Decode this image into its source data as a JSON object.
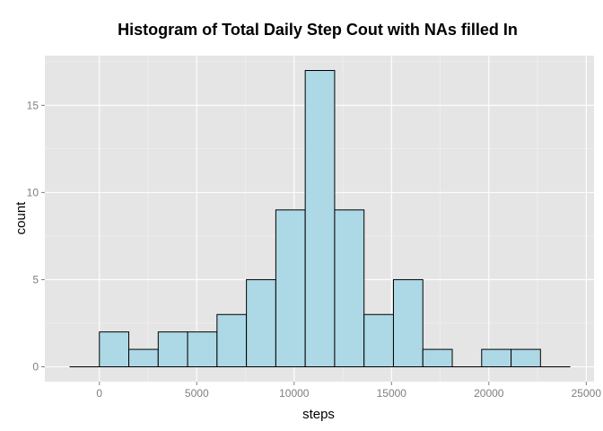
{
  "chart_data": {
    "type": "bar",
    "title": "Histogram of Total Daily Step Cout with NAs filled In",
    "xlabel": "steps",
    "ylabel": "count",
    "x_ticks": [
      0,
      5000,
      10000,
      15000,
      20000,
      25000
    ],
    "y_ticks": [
      0,
      5,
      10,
      15
    ],
    "xlim": [
      -2800,
      25400
    ],
    "ylim": [
      -0.85,
      17.85
    ],
    "bin_width": 1510,
    "bins": [
      {
        "start": -1510,
        "end": 0,
        "count": 0
      },
      {
        "start": 0,
        "end": 1510,
        "count": 2
      },
      {
        "start": 1510,
        "end": 3020,
        "count": 1
      },
      {
        "start": 3020,
        "end": 4530,
        "count": 2
      },
      {
        "start": 4530,
        "end": 6040,
        "count": 2
      },
      {
        "start": 6040,
        "end": 7550,
        "count": 3
      },
      {
        "start": 7550,
        "end": 9060,
        "count": 5
      },
      {
        "start": 9060,
        "end": 10570,
        "count": 9
      },
      {
        "start": 10570,
        "end": 12080,
        "count": 17
      },
      {
        "start": 12080,
        "end": 13590,
        "count": 9
      },
      {
        "start": 13590,
        "end": 15100,
        "count": 3
      },
      {
        "start": 15100,
        "end": 16610,
        "count": 5
      },
      {
        "start": 16610,
        "end": 18120,
        "count": 1
      },
      {
        "start": 18120,
        "end": 19630,
        "count": 0
      },
      {
        "start": 19630,
        "end": 21140,
        "count": 1
      },
      {
        "start": 21140,
        "end": 22650,
        "count": 1
      },
      {
        "start": 22650,
        "end": 24160,
        "count": 0
      }
    ],
    "grid": true,
    "legend": "none",
    "colors": {
      "panel_background": "#e5e5e5",
      "grid_major": "#ffffff",
      "grid_minor": "#f2f2f2",
      "bar_fill": "#add8e6",
      "bar_outline": "#000000",
      "tick_mark": "#7f7f7f"
    }
  }
}
